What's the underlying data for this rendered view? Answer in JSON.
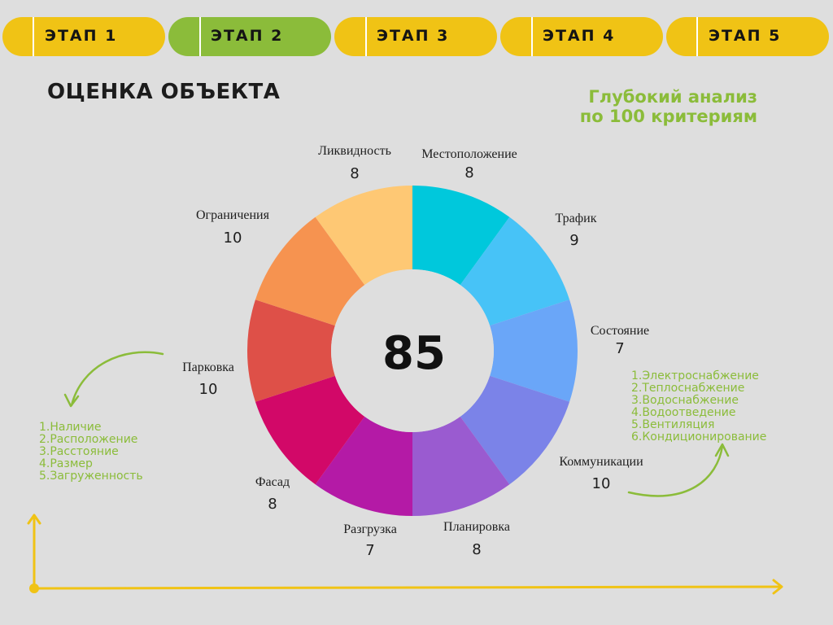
{
  "steps": [
    {
      "label": "ЭТАП 1",
      "active": false
    },
    {
      "label": "ЭТАП 2",
      "active": true
    },
    {
      "label": "ЭТАП 3",
      "active": false
    },
    {
      "label": "ЭТАП 4",
      "active": false
    },
    {
      "label": "ЭТАП 5",
      "active": false
    }
  ],
  "heading": "ОЦЕНКА ОБЪЕКТА",
  "subheading": "Глубокий анализ\nпо 100 критериям",
  "parking_list": [
    "1.Наличие",
    "2.Расположение",
    "3.Расстояние",
    "4.Размер",
    "5.Загруженность"
  ],
  "communications_list": [
    "1.Электроснабжение",
    "2.Теплоснабжение",
    "3.Водоснабжение",
    "4.Водоотведение",
    "5.Вентиляция",
    "6.Кондиционирование"
  ],
  "colors": {
    "yellow": "#f0c315",
    "green": "#8bbc3a"
  },
  "chart_data": {
    "type": "pie",
    "total": "85",
    "slices": [
      {
        "label": "Местоположение",
        "value": 8,
        "color": "#00c8dc"
      },
      {
        "label": "Трафик",
        "value": 9,
        "color": "#47c3f7"
      },
      {
        "label": "Состояние",
        "value": 7,
        "color": "#6aa6f8"
      },
      {
        "label": "Коммуникации",
        "value": 10,
        "color": "#7b83e8"
      },
      {
        "label": "Планировка",
        "value": 8,
        "color": "#9a5bd0"
      },
      {
        "label": "Разгрузка",
        "value": 7,
        "color": "#b41aa6"
      },
      {
        "label": "Фасад",
        "value": 8,
        "color": "#d20868"
      },
      {
        "label": "Парковка",
        "value": 10,
        "color": "#de5048"
      },
      {
        "label": "Ограничения",
        "value": 10,
        "color": "#f69350"
      },
      {
        "label": "Ликвидность",
        "value": 8,
        "color": "#fec874"
      }
    ]
  }
}
